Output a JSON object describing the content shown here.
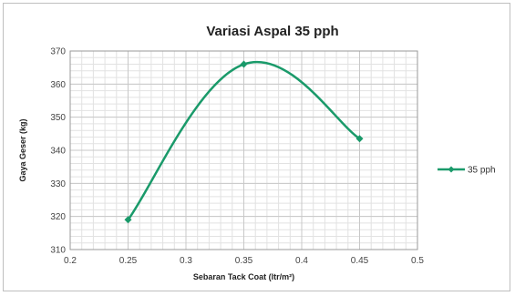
{
  "chart_data": {
    "type": "line",
    "title": "Variasi Aspal 35 pph",
    "xlabel": "Sebaran Tack Coat  (ltr/m²)",
    "ylabel": "Gaya Geser  (kg)",
    "xlim": [
      0.2,
      0.5
    ],
    "ylim": [
      310,
      370
    ],
    "x_ticks": [
      "0.2",
      "0.25",
      "0.3",
      "0.35",
      "0.4",
      "0.45",
      "0.5"
    ],
    "y_ticks": [
      "310",
      "320",
      "330",
      "340",
      "350",
      "360",
      "370"
    ],
    "series": [
      {
        "name": "35 pph",
        "color": "#1a9a6a",
        "x": [
          0.25,
          0.35,
          0.45
        ],
        "y": [
          319,
          366,
          343.5
        ],
        "smooth": true,
        "marker": "diamond"
      }
    ],
    "grid": true,
    "legend": "right"
  }
}
